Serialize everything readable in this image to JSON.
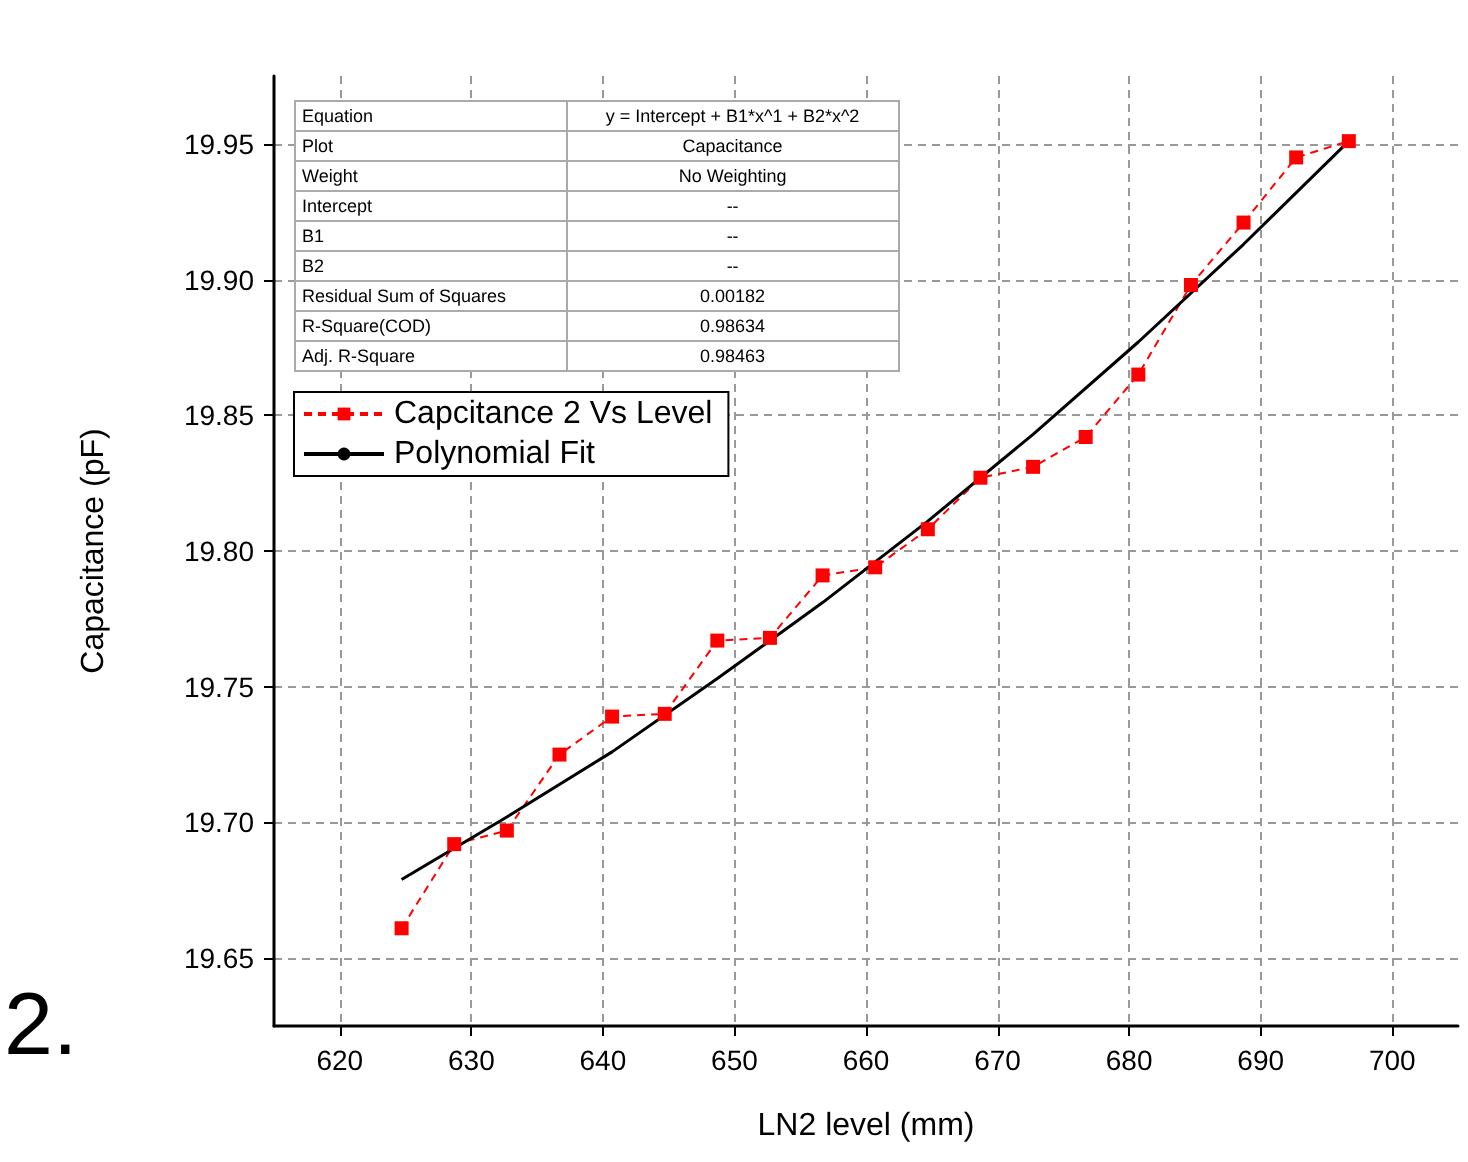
{
  "chart_data": {
    "type": "line",
    "xlabel": "LN2 level (mm)",
    "ylabel": "Capacitance (pF)",
    "xlim": [
      615,
      705
    ],
    "xticks": [
      620,
      630,
      640,
      650,
      660,
      670,
      680,
      690,
      700
    ],
    "ylim": [
      19.625,
      19.975
    ],
    "yticks": [
      {
        "value": 19.65,
        "label": "19.65"
      },
      {
        "value": 19.7,
        "label": "19.70"
      },
      {
        "value": 19.75,
        "label": "19.75"
      },
      {
        "value": 19.8,
        "label": "19.80"
      },
      {
        "value": 19.85,
        "label": "19.85"
      },
      {
        "value": 19.9,
        "label": "19.90"
      },
      {
        "value": 19.95,
        "label": "19.95"
      }
    ],
    "grid": true,
    "legend": "top left",
    "series": [
      {
        "name": "Capcitance 2 Vs Level",
        "color": "#ff0000",
        "marker": "square",
        "line_style": "dashed",
        "x": [
          624.7,
          628.7,
          632.7,
          636.7,
          640.7,
          644.7,
          648.7,
          652.7,
          656.7,
          660.7,
          664.7,
          668.7,
          672.7,
          676.7,
          680.7,
          684.7,
          688.7,
          692.7,
          696.7
        ],
        "values": [
          19.661,
          19.692,
          19.697,
          19.725,
          19.739,
          19.74,
          19.767,
          19.768,
          19.791,
          19.794,
          19.808,
          19.827,
          19.831,
          19.842,
          19.865,
          19.898,
          19.921,
          19.945,
          19.951
        ]
      },
      {
        "name": "Polynomial Fit",
        "color": "#000000",
        "marker": "none",
        "line_style": "solid",
        "x": [
          624.7,
          632.7,
          640.7,
          648.7,
          656.7,
          664.7,
          672.7,
          680.7,
          688.7,
          696.7
        ],
        "values": [
          19.679,
          19.702,
          19.726,
          19.753,
          19.781,
          19.811,
          19.843,
          19.877,
          19.913,
          19.951
        ]
      }
    ],
    "annotations": [
      "Equation",
      "y = Intercept + B1*x^1 + B2*x^2",
      "Plot",
      "Capacitance",
      "Weight",
      "No Weighting",
      "Intercept",
      "--",
      "B1",
      "--",
      "B2",
      "--",
      "Residual Sum of Squares",
      "0.00182",
      "R-Square(COD)",
      "0.98634",
      "Adj. R-Square",
      "0.98463",
      "2."
    ]
  }
}
